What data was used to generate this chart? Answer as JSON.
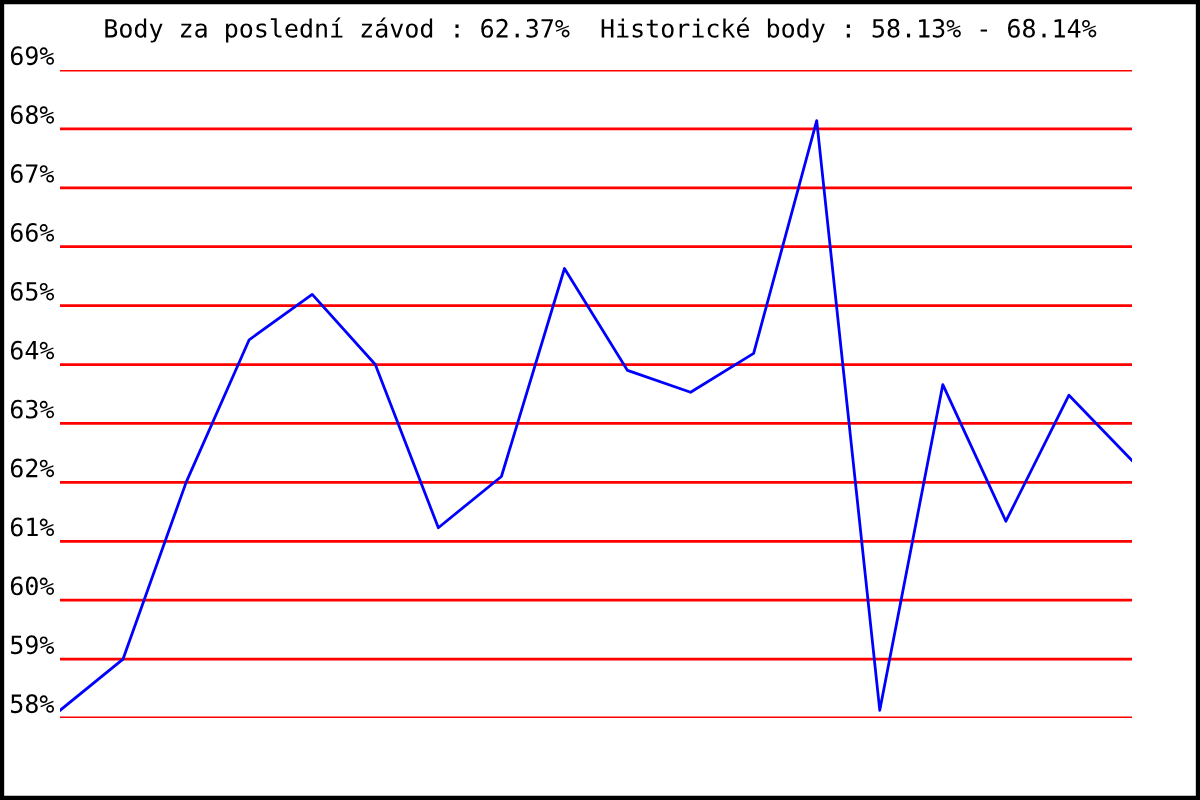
{
  "chart_data": {
    "type": "line",
    "title": "Body za poslední závod : 62.37%  Historické body : 58.13% - 68.14%",
    "categories": [
      null,
      null,
      null,
      null,
      null,
      null,
      null,
      null,
      null,
      null,
      null,
      null,
      null,
      null,
      null,
      null,
      null,
      null
    ],
    "series": [
      {
        "color": "#0000ff",
        "values": [
          58.13,
          59.0,
          62.0,
          64.42,
          65.19,
          64.0,
          61.23,
          62.1,
          65.63,
          63.9,
          63.53,
          64.19,
          68.14,
          58.13,
          63.66,
          61.34,
          63.48,
          62.37
        ]
      }
    ],
    "ylim": [
      58,
      69
    ],
    "yticks": [
      {
        "value": 58,
        "label": "58%"
      },
      {
        "value": 59,
        "label": "59%"
      },
      {
        "value": 60,
        "label": "60%"
      },
      {
        "value": 61,
        "label": "61%"
      },
      {
        "value": 62,
        "label": "62%"
      },
      {
        "value": 63,
        "label": "63%"
      },
      {
        "value": 64,
        "label": "64%"
      },
      {
        "value": 65,
        "label": "65%"
      },
      {
        "value": 66,
        "label": "66%"
      },
      {
        "value": 67,
        "label": "67%"
      },
      {
        "value": 68,
        "label": "68%"
      },
      {
        "value": 69,
        "label": "69%"
      }
    ],
    "grid": "y",
    "marker": "none",
    "line_style": "solid",
    "legend": false
  }
}
